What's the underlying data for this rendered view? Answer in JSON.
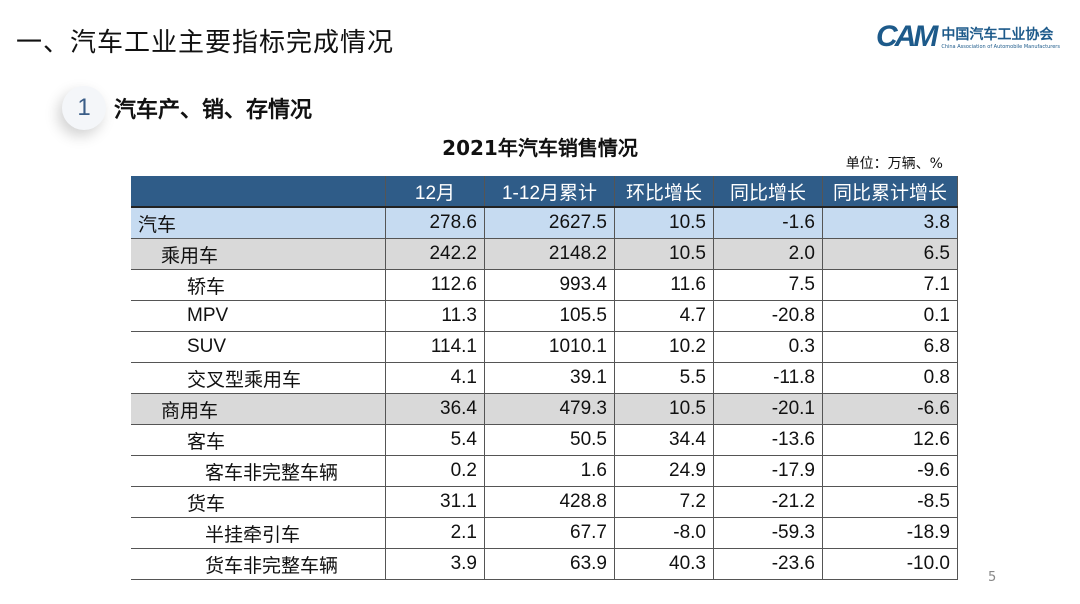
{
  "slide": {
    "title": "一、汽车工业主要指标完成情况",
    "section_number": "1",
    "section_title": "汽车产、销、存情况",
    "page_number": "5"
  },
  "logo": {
    "mark": "CAM",
    "cn": "中国汽车工业协会",
    "en": "China Association of Automobile Manufacturers",
    "color": "#1d5a8a"
  },
  "table": {
    "title": "2021年汽车销售情况",
    "unit": "单位：万辆、%",
    "columns": [
      "",
      "12月",
      "1-12月累计",
      "环比增长",
      "同比增长",
      "同比累计增长"
    ],
    "rows": [
      {
        "label": "汽车",
        "level": 0,
        "values": [
          "278.6",
          "2627.5",
          "10.5",
          "-1.6",
          "3.8"
        ]
      },
      {
        "label": "乘用车",
        "level": 1,
        "values": [
          "242.2",
          "2148.2",
          "10.5",
          "2.0",
          "6.5"
        ]
      },
      {
        "label": "轿车",
        "level": 2,
        "values": [
          "112.6",
          "993.4",
          "11.6",
          "7.5",
          "7.1"
        ]
      },
      {
        "label": "MPV",
        "level": 2,
        "values": [
          "11.3",
          "105.5",
          "4.7",
          "-20.8",
          "0.1"
        ]
      },
      {
        "label": "SUV",
        "level": 2,
        "values": [
          "114.1",
          "1010.1",
          "10.2",
          "0.3",
          "6.8"
        ]
      },
      {
        "label": "交叉型乘用车",
        "level": 2,
        "values": [
          "4.1",
          "39.1",
          "5.5",
          "-11.8",
          "0.8"
        ]
      },
      {
        "label": "商用车",
        "level": 1,
        "values": [
          "36.4",
          "479.3",
          "10.5",
          "-20.1",
          "-6.6"
        ]
      },
      {
        "label": "客车",
        "level": 2,
        "values": [
          "5.4",
          "50.5",
          "34.4",
          "-13.6",
          "12.6"
        ]
      },
      {
        "label": "客车非完整车辆",
        "level": 3,
        "values": [
          "0.2",
          "1.6",
          "24.9",
          "-17.9",
          "-9.6"
        ]
      },
      {
        "label": "货车",
        "level": 2,
        "values": [
          "31.1",
          "428.8",
          "7.2",
          "-21.2",
          "-8.5"
        ]
      },
      {
        "label": "半挂牵引车",
        "level": 3,
        "values": [
          "2.1",
          "67.7",
          "-8.0",
          "-59.3",
          "-18.9"
        ]
      },
      {
        "label": "货车非完整车辆",
        "level": 3,
        "values": [
          "3.9",
          "63.9",
          "40.3",
          "-23.6",
          "-10.0"
        ]
      }
    ],
    "colors": {
      "header": "#2f5c88",
      "total_row": "#c6dbf1",
      "subtotal_row": "#d9d9d9"
    }
  }
}
